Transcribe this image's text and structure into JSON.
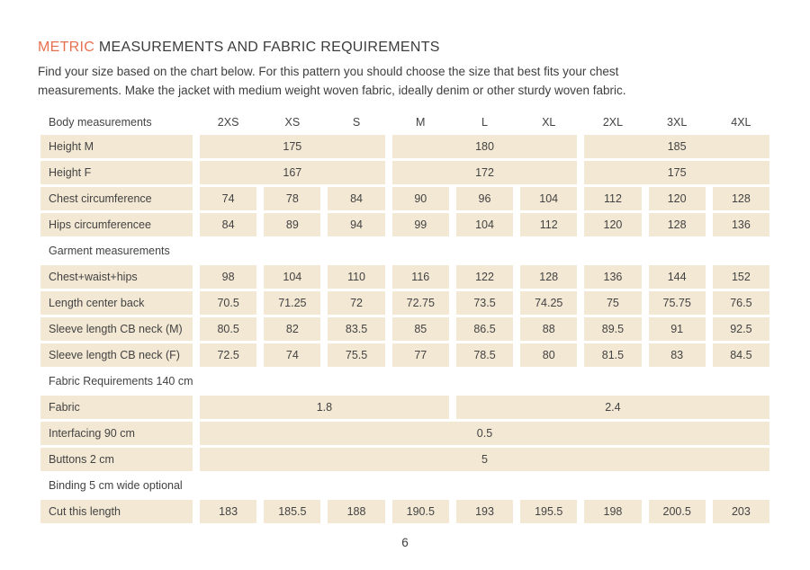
{
  "header": {
    "title_accent": "METRIC",
    "title_rest": "MEASUREMENTS AND FABRIC REQUIREMENTS",
    "intro": "Find your size based on the chart below. For this pattern you should choose the size that best fits your chest measurements. Make the jacket with medium weight woven fabric, ideally denim or other sturdy woven fabric."
  },
  "colors": {
    "accent": "#e7704e",
    "cell_background": "#f3e8d4",
    "text": "#3e3e3e"
  },
  "table": {
    "header": {
      "label": "Body measurements",
      "sizes": [
        "2XS",
        "XS",
        "S",
        "M",
        "L",
        "XL",
        "2XL",
        "3XL",
        "4XL"
      ]
    },
    "rows": [
      {
        "type": "data",
        "label": "Height M",
        "cells": [
          {
            "value": "175",
            "span": 3
          },
          {
            "value": "180",
            "span": 3
          },
          {
            "value": "185",
            "span": 3
          }
        ]
      },
      {
        "type": "data",
        "label": "Height F",
        "cells": [
          {
            "value": "167",
            "span": 3
          },
          {
            "value": "172",
            "span": 3
          },
          {
            "value": "175",
            "span": 3
          }
        ]
      },
      {
        "type": "data",
        "label": "Chest circumference",
        "cells": [
          {
            "value": "74",
            "span": 1
          },
          {
            "value": "78",
            "span": 1
          },
          {
            "value": "84",
            "span": 1
          },
          {
            "value": "90",
            "span": 1
          },
          {
            "value": "96",
            "span": 1
          },
          {
            "value": "104",
            "span": 1
          },
          {
            "value": "112",
            "span": 1
          },
          {
            "value": "120",
            "span": 1
          },
          {
            "value": "128",
            "span": 1
          }
        ]
      },
      {
        "type": "data",
        "label": "Hips circumferencee",
        "cells": [
          {
            "value": "84",
            "span": 1
          },
          {
            "value": "89",
            "span": 1
          },
          {
            "value": "94",
            "span": 1
          },
          {
            "value": "99",
            "span": 1
          },
          {
            "value": "104",
            "span": 1
          },
          {
            "value": "112",
            "span": 1
          },
          {
            "value": "120",
            "span": 1
          },
          {
            "value": "128",
            "span": 1
          },
          {
            "value": "136",
            "span": 1
          }
        ]
      },
      {
        "type": "section",
        "label": "Garment measurements"
      },
      {
        "type": "data",
        "label": "Chest+waist+hips",
        "cells": [
          {
            "value": "98",
            "span": 1
          },
          {
            "value": "104",
            "span": 1
          },
          {
            "value": "110",
            "span": 1
          },
          {
            "value": "116",
            "span": 1
          },
          {
            "value": "122",
            "span": 1
          },
          {
            "value": "128",
            "span": 1
          },
          {
            "value": "136",
            "span": 1
          },
          {
            "value": "144",
            "span": 1
          },
          {
            "value": "152",
            "span": 1
          }
        ]
      },
      {
        "type": "data",
        "label": "Length center back",
        "cells": [
          {
            "value": "70.5",
            "span": 1
          },
          {
            "value": "71.25",
            "span": 1
          },
          {
            "value": "72",
            "span": 1
          },
          {
            "value": "72.75",
            "span": 1
          },
          {
            "value": "73.5",
            "span": 1
          },
          {
            "value": "74.25",
            "span": 1
          },
          {
            "value": "75",
            "span": 1
          },
          {
            "value": "75.75",
            "span": 1
          },
          {
            "value": "76.5",
            "span": 1
          }
        ]
      },
      {
        "type": "data",
        "label": "Sleeve length CB neck (M)",
        "cells": [
          {
            "value": "80.5",
            "span": 1
          },
          {
            "value": "82",
            "span": 1
          },
          {
            "value": "83.5",
            "span": 1
          },
          {
            "value": "85",
            "span": 1
          },
          {
            "value": "86.5",
            "span": 1
          },
          {
            "value": "88",
            "span": 1
          },
          {
            "value": "89.5",
            "span": 1
          },
          {
            "value": "91",
            "span": 1
          },
          {
            "value": "92.5",
            "span": 1
          }
        ]
      },
      {
        "type": "data",
        "label": "Sleeve length CB neck (F)",
        "cells": [
          {
            "value": "72.5",
            "span": 1
          },
          {
            "value": "74",
            "span": 1
          },
          {
            "value": "75.5",
            "span": 1
          },
          {
            "value": "77",
            "span": 1
          },
          {
            "value": "78.5",
            "span": 1
          },
          {
            "value": "80",
            "span": 1
          },
          {
            "value": "81.5",
            "span": 1
          },
          {
            "value": "83",
            "span": 1
          },
          {
            "value": "84.5",
            "span": 1
          }
        ]
      },
      {
        "type": "section",
        "label": "Fabric Requirements 140 cm"
      },
      {
        "type": "data",
        "label": "Fabric",
        "cells": [
          {
            "value": "1.8",
            "span": 4
          },
          {
            "value": "2.4",
            "span": 5
          }
        ]
      },
      {
        "type": "data",
        "label": "Interfacing 90 cm",
        "cells": [
          {
            "value": "0.5",
            "span": 9
          }
        ]
      },
      {
        "type": "data",
        "label": "Buttons 2 cm",
        "cells": [
          {
            "value": "5",
            "span": 9
          }
        ]
      },
      {
        "type": "section",
        "label": "Binding 5 cm wide optional"
      },
      {
        "type": "data",
        "label": "Cut this length",
        "cells": [
          {
            "value": "183",
            "span": 1
          },
          {
            "value": "185.5",
            "span": 1
          },
          {
            "value": "188",
            "span": 1
          },
          {
            "value": "190.5",
            "span": 1
          },
          {
            "value": "193",
            "span": 1
          },
          {
            "value": "195.5",
            "span": 1
          },
          {
            "value": "198",
            "span": 1
          },
          {
            "value": "200.5",
            "span": 1
          },
          {
            "value": "203",
            "span": 1
          }
        ]
      }
    ]
  },
  "footer": {
    "page_number": "6"
  }
}
